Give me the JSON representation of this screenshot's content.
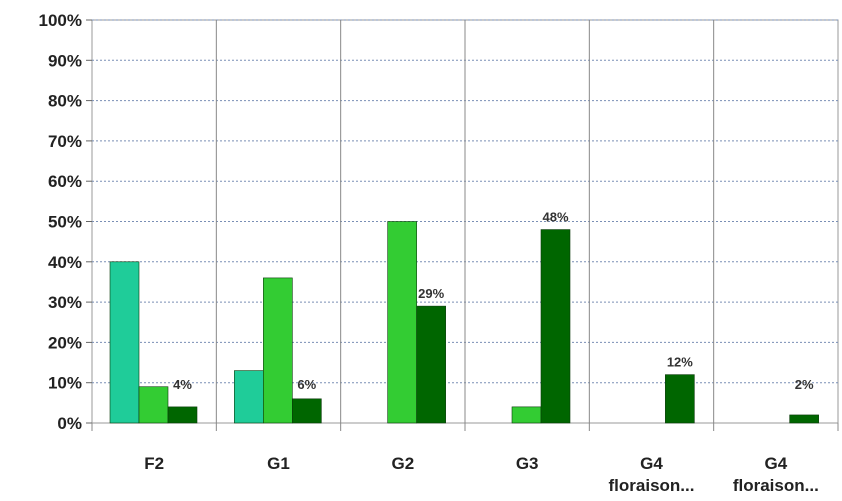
{
  "chart_data": {
    "type": "bar",
    "title": "",
    "xlabel": "",
    "ylabel": "",
    "ylim": [
      0,
      100
    ],
    "y_tick_labels": [
      "0%",
      "10%",
      "20%",
      "30%",
      "40%",
      "50%",
      "60%",
      "70%",
      "80%",
      "90%",
      "100%"
    ],
    "grid": "horizontal dotted",
    "categories": [
      [
        "F2"
      ],
      [
        "G1"
      ],
      [
        "G2"
      ],
      [
        "G3"
      ],
      [
        "G4",
        "floraison..."
      ],
      [
        "G4",
        "floraison..."
      ]
    ],
    "series": [
      {
        "color": "#1fcc99",
        "values": [
          40,
          13,
          0,
          0,
          0,
          0
        ]
      },
      {
        "color": "#33cc33",
        "values": [
          9,
          36,
          50,
          4,
          0,
          0
        ]
      },
      {
        "color": "#006600",
        "values": [
          4,
          6,
          29,
          48,
          12,
          2
        ]
      }
    ],
    "data_labels": [
      "4%",
      "6%",
      "29%",
      "48%",
      "12%",
      "2%"
    ]
  }
}
